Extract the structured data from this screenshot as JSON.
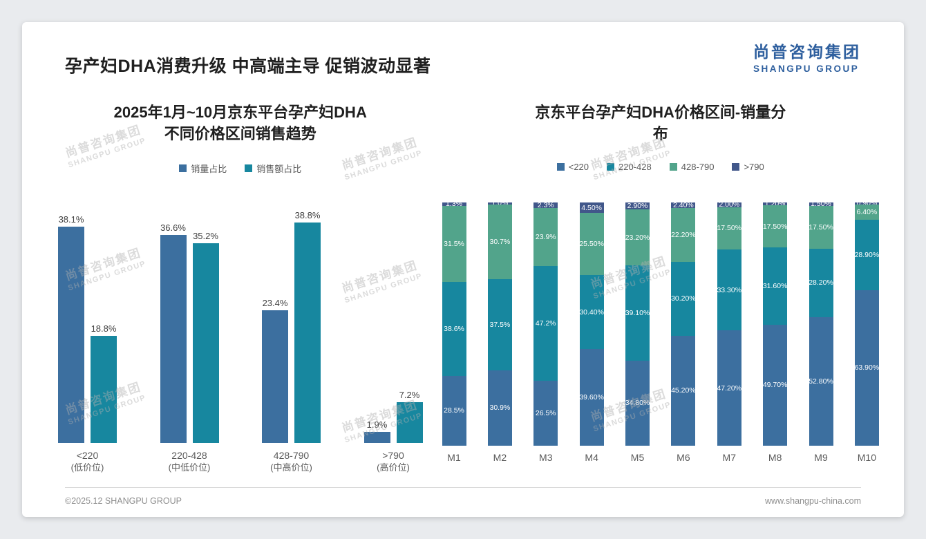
{
  "page": {
    "title": "孕产妇DHA消费升级 中高端主导 促销波动显著",
    "logo": {
      "cn": "尚普咨询集团",
      "en": "SHANGPU GROUP"
    },
    "watermark": {
      "cn": "尚普咨询集团",
      "en": "SHANGPU GROUP"
    },
    "footer": {
      "left": "©2025.12 SHANGPU GROUP",
      "right": "www.shangpu-china.com"
    }
  },
  "colors": {
    "logo_blue": "#2e5f9e",
    "bar_blue": "#3c6f9f",
    "bar_teal": "#17879f",
    "bar_green": "#52a48b",
    "bar_navy": "#41578a"
  },
  "chart_data": [
    {
      "type": "bar",
      "title": "2025年1月~10月京东平台孕产妇DHA\n不同价格区间销售趋势",
      "categories": [
        "<220",
        "220-428",
        "428-790",
        ">790"
      ],
      "category_sublabels": [
        "(低价位)",
        "(中低价位)",
        "(中高价位)",
        "(高价位)"
      ],
      "series": [
        {
          "name": "销量占比",
          "color": "#3c6f9f",
          "values": [
            38.1,
            36.6,
            23.4,
            1.9
          ],
          "labels": [
            "38.1%",
            "36.6%",
            "23.4%",
            "1.9%"
          ]
        },
        {
          "name": "销售额占比",
          "color": "#17879f",
          "values": [
            18.8,
            35.2,
            38.8,
            7.2
          ],
          "labels": [
            "18.8%",
            "35.2%",
            "38.8%",
            "7.2%"
          ]
        }
      ],
      "ylim": [
        0,
        42
      ],
      "grid": false,
      "legend_position": "top",
      "value_suffix": "%"
    },
    {
      "type": "bar",
      "subtype": "stacked-100",
      "title": "京东平台孕产妇DHA价格区间-销量分\n布",
      "categories": [
        "M1",
        "M2",
        "M3",
        "M4",
        "M5",
        "M6",
        "M7",
        "M8",
        "M9",
        "M10"
      ],
      "series": [
        {
          "name": "<220",
          "color": "#3c6f9f",
          "values": [
            28.5,
            30.9,
            26.5,
            39.6,
            34.8,
            45.2,
            47.2,
            49.7,
            52.8,
            63.9
          ],
          "labels": [
            "28.5%",
            "30.9%",
            "26.5%",
            "39.60%",
            "34.80%",
            "45.20%",
            "47.20%",
            "49.70%",
            "52.80%",
            "63.90%"
          ]
        },
        {
          "name": "220-428",
          "color": "#17879f",
          "values": [
            38.6,
            37.5,
            47.2,
            30.4,
            39.1,
            30.2,
            33.3,
            31.6,
            28.2,
            28.9
          ],
          "labels": [
            "38.6%",
            "37.5%",
            "47.2%",
            "30.40%",
            "39.10%",
            "30.20%",
            "33.30%",
            "31.60%",
            "28.20%",
            "28.90%"
          ]
        },
        {
          "name": "428-790",
          "color": "#52a48b",
          "values": [
            31.5,
            30.7,
            23.9,
            25.5,
            23.2,
            22.2,
            17.5,
            17.5,
            17.5,
            6.4
          ],
          "labels": [
            "31.5%",
            "30.7%",
            "23.9%",
            "25.50%",
            "23.20%",
            "22.20%",
            "17.50%",
            "17.50%",
            "17.50%",
            "6.40%"
          ]
        },
        {
          "name": ">790",
          "color": "#41578a",
          "values": [
            1.3,
            1.0,
            2.3,
            4.5,
            2.9,
            2.4,
            2.0,
            1.2,
            1.5,
            0.9
          ],
          "labels": [
            "1.3%",
            "1.0%",
            "2.3%",
            "4.50%",
            "2.90%",
            "2.40%",
            "2.00%",
            "1.20%",
            "1.50%",
            "0.90%"
          ]
        }
      ],
      "ylim": [
        0,
        100
      ],
      "grid": false,
      "legend_position": "top",
      "value_suffix": "%"
    }
  ]
}
